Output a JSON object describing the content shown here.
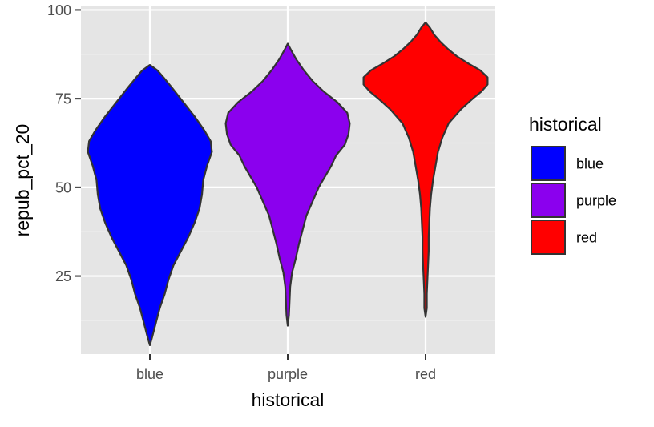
{
  "chart_data": {
    "type": "violin",
    "title": "",
    "xlabel": "historical",
    "ylabel": "repub_pct_20",
    "categories": [
      "blue",
      "purple",
      "red"
    ],
    "ylim": [
      3,
      101
    ],
    "yticks": [
      25,
      50,
      75,
      100
    ],
    "ytick_labels": [
      "25",
      "50",
      "75",
      "100"
    ],
    "grid": true,
    "background": "#e5e5e5",
    "legend": {
      "title": "historical",
      "placement": "right",
      "entries": [
        {
          "label": "blue",
          "color": "#0000ff"
        },
        {
          "label": "purple",
          "color": "#8b00ee"
        },
        {
          "label": "red",
          "color": "#ff0000"
        }
      ]
    },
    "series": [
      {
        "category": "blue",
        "color": "#0000ff",
        "min": 5.5,
        "max": 84.5,
        "density": [
          [
            5.5,
            0
          ],
          [
            8,
            0.04
          ],
          [
            12,
            0.1
          ],
          [
            16,
            0.16
          ],
          [
            20,
            0.24
          ],
          [
            24,
            0.3
          ],
          [
            28,
            0.38
          ],
          [
            32,
            0.5
          ],
          [
            36,
            0.62
          ],
          [
            40,
            0.72
          ],
          [
            44,
            0.8
          ],
          [
            48,
            0.84
          ],
          [
            52,
            0.86
          ],
          [
            56,
            0.92
          ],
          [
            60,
            1
          ],
          [
            63,
            0.98
          ],
          [
            66,
            0.88
          ],
          [
            70,
            0.72
          ],
          [
            74,
            0.54
          ],
          [
            78,
            0.36
          ],
          [
            81,
            0.22
          ],
          [
            83,
            0.12
          ],
          [
            84.5,
            0
          ]
        ]
      },
      {
        "category": "purple",
        "color": "#8b00ee",
        "min": 11,
        "max": 90.5,
        "density": [
          [
            11,
            0
          ],
          [
            14,
            0.02
          ],
          [
            18,
            0.03
          ],
          [
            22,
            0.04
          ],
          [
            26,
            0.07
          ],
          [
            30,
            0.13
          ],
          [
            34,
            0.18
          ],
          [
            38,
            0.24
          ],
          [
            42,
            0.3
          ],
          [
            46,
            0.4
          ],
          [
            50,
            0.5
          ],
          [
            53,
            0.6
          ],
          [
            56,
            0.7
          ],
          [
            59,
            0.78
          ],
          [
            62,
            0.92
          ],
          [
            65,
            0.98
          ],
          [
            68,
            1
          ],
          [
            71,
            0.96
          ],
          [
            74,
            0.8
          ],
          [
            77,
            0.58
          ],
          [
            80,
            0.4
          ],
          [
            83,
            0.26
          ],
          [
            86,
            0.14
          ],
          [
            88.5,
            0.06
          ],
          [
            90.5,
            0
          ]
        ]
      },
      {
        "category": "red",
        "color": "#ff0000",
        "min": 13.5,
        "max": 96.5,
        "density": [
          [
            13.5,
            0
          ],
          [
            16,
            0.02
          ],
          [
            20,
            0.02
          ],
          [
            24,
            0.03
          ],
          [
            28,
            0.04
          ],
          [
            32,
            0.05
          ],
          [
            36,
            0.05
          ],
          [
            40,
            0.06
          ],
          [
            44,
            0.07
          ],
          [
            48,
            0.09
          ],
          [
            52,
            0.12
          ],
          [
            56,
            0.16
          ],
          [
            60,
            0.2
          ],
          [
            64,
            0.27
          ],
          [
            68,
            0.37
          ],
          [
            72,
            0.57
          ],
          [
            75,
            0.76
          ],
          [
            77,
            0.9
          ],
          [
            79,
            1
          ],
          [
            81,
            1
          ],
          [
            83,
            0.88
          ],
          [
            85,
            0.68
          ],
          [
            87,
            0.5
          ],
          [
            89,
            0.36
          ],
          [
            91,
            0.24
          ],
          [
            93,
            0.14
          ],
          [
            95,
            0.07
          ],
          [
            96.5,
            0
          ]
        ]
      }
    ]
  }
}
